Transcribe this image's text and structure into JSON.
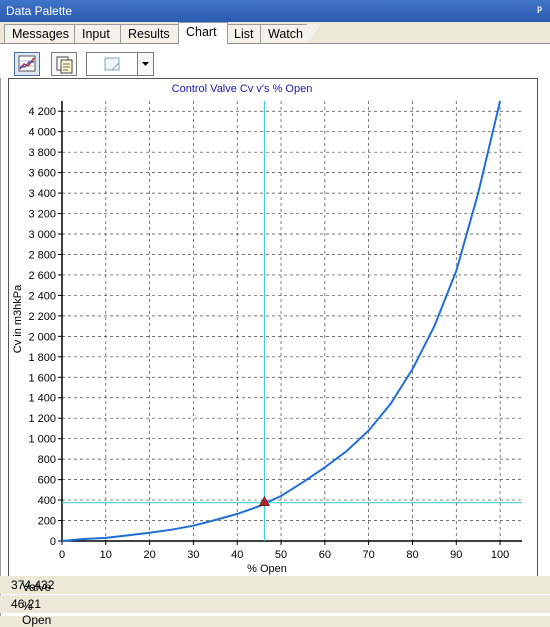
{
  "window": {
    "title": "Data Palette",
    "pin_glyph": "ᵖ"
  },
  "tabs": [
    {
      "label": "Messages",
      "active": false
    },
    {
      "label": "Input",
      "active": false
    },
    {
      "label": "Results",
      "active": false
    },
    {
      "label": "Chart",
      "active": true
    },
    {
      "label": "List",
      "active": false
    },
    {
      "label": "Watch",
      "active": false
    }
  ],
  "toolbar": {
    "buttons": [
      {
        "icon": "chart-icon",
        "pressed": true
      },
      {
        "icon": "copy-icon",
        "pressed": false
      }
    ],
    "dropdown_icon": "export-icon"
  },
  "chart_data": {
    "type": "line",
    "title": "Control Valve Cv v's % Open",
    "xlabel": "% Open",
    "ylabel": "Cv in m3hkPa",
    "xlim": [
      0,
      105
    ],
    "ylim": [
      0,
      4300
    ],
    "x_ticks": [
      0,
      10,
      20,
      30,
      40,
      50,
      60,
      70,
      80,
      90,
      100
    ],
    "y_ticks": [
      0,
      200,
      400,
      600,
      800,
      1000,
      1200,
      1400,
      1600,
      1800,
      2000,
      2200,
      2400,
      2600,
      2800,
      3000,
      3200,
      3400,
      3600,
      3800,
      4000,
      4200
    ],
    "y_tick_labels": [
      "0",
      "200",
      "400",
      "600",
      "800",
      "1 000",
      "1 200",
      "1 400",
      "1 600",
      "1 800",
      "2 000",
      "2 200",
      "2 400",
      "2 600",
      "2 800",
      "3 000",
      "3 200",
      "3 400",
      "3 600",
      "3 800",
      "4 000",
      "4 200"
    ],
    "grid": true,
    "series": [
      {
        "color": "#1e6fd6",
        "x": [
          0,
          5,
          10,
          15,
          20,
          25,
          30,
          35,
          40,
          45,
          50,
          55,
          60,
          65,
          70,
          75,
          80,
          85,
          90,
          95,
          100
        ],
        "y": [
          0,
          20,
          30,
          55,
          80,
          110,
          150,
          205,
          265,
          340,
          440,
          575,
          720,
          880,
          1080,
          1340,
          1680,
          2100,
          2640,
          3400,
          4300
        ]
      }
    ],
    "cursor": {
      "x": 46.21,
      "y": 374.432,
      "color": "#40d0d0",
      "marker_color": "#c0202a"
    }
  },
  "status": [
    {
      "label": "Valve Cv:",
      "value": "374.432"
    },
    {
      "label": "% Open",
      "value": "46.21"
    }
  ]
}
